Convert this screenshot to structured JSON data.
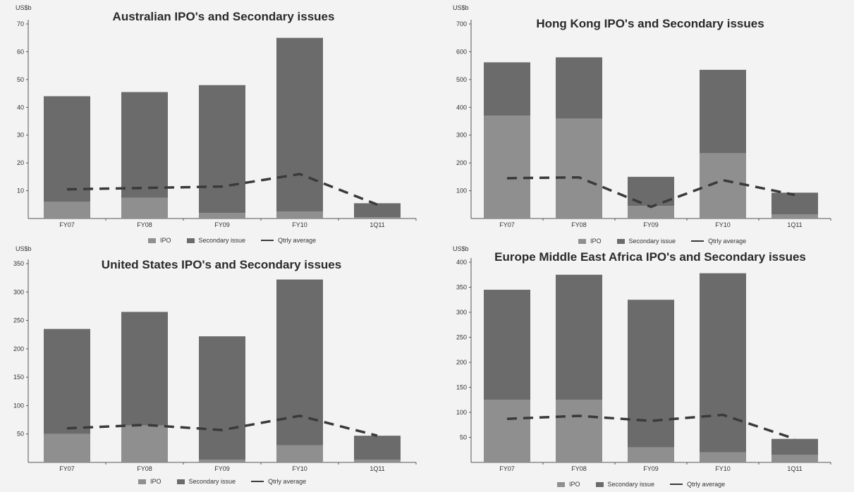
{
  "colors": {
    "ipo": "#8f8f8f",
    "secondary": "#6b6b6b",
    "avg_line": "#3a3a3a",
    "axis": "#555555"
  },
  "legend": {
    "ipo": "IPO",
    "secondary": "Secondary issue",
    "avg": "Qtrly average"
  },
  "chart_data": [
    {
      "type": "bar",
      "stacked": true,
      "title": "Australian IPO's and Secondary issues",
      "unit_label": "US$b",
      "categories": [
        "FY07",
        "FY08",
        "FY09",
        "FY10",
        "1Q11"
      ],
      "ylim": [
        0,
        70
      ],
      "yticks": [
        10,
        20,
        30,
        40,
        50,
        60,
        70
      ],
      "series": [
        {
          "name": "IPO",
          "values": [
            6,
            7.5,
            2,
            2.5,
            0.5
          ]
        },
        {
          "name": "Secondary issue",
          "values": [
            38,
            38,
            46,
            62.5,
            5
          ]
        }
      ],
      "line": {
        "name": "Qtrly average",
        "values": [
          10.5,
          11,
          11.5,
          16,
          5
        ]
      },
      "legend_position": "bottom"
    },
    {
      "type": "bar",
      "stacked": true,
      "title": "Hong Kong IPO's and Secondary issues",
      "unit_label": "US$b",
      "categories": [
        "FY07",
        "FY08",
        "FY09",
        "FY10",
        "1Q11"
      ],
      "ylim": [
        0,
        700
      ],
      "yticks": [
        100,
        200,
        300,
        400,
        500,
        600,
        700
      ],
      "series": [
        {
          "name": "IPO",
          "values": [
            370,
            360,
            45,
            235,
            15
          ]
        },
        {
          "name": "Secondary issue",
          "values": [
            192,
            220,
            105,
            300,
            78
          ]
        }
      ],
      "line": {
        "name": "Qtrly average",
        "values": [
          145,
          148,
          42,
          138,
          85
        ]
      },
      "legend_position": "bottom"
    },
    {
      "type": "bar",
      "stacked": true,
      "title": "United States IPO's and Secondary issues",
      "unit_label": "US$b",
      "categories": [
        "FY07",
        "FY08",
        "FY09",
        "FY10",
        "1Q11"
      ],
      "ylim": [
        0,
        350
      ],
      "yticks": [
        50,
        100,
        150,
        200,
        250,
        300,
        350
      ],
      "series": [
        {
          "name": "IPO",
          "values": [
            50,
            65,
            5,
            30,
            5
          ]
        },
        {
          "name": "Secondary issue",
          "values": [
            185,
            200,
            217,
            292,
            42
          ]
        }
      ],
      "line": {
        "name": "Qtrly average",
        "values": [
          60,
          66,
          57,
          82,
          47
        ]
      },
      "legend_position": "bottom"
    },
    {
      "type": "bar",
      "stacked": true,
      "title": "Europe Middle East Africa IPO's and Secondary issues",
      "unit_label": "US$b",
      "categories": [
        "FY07",
        "FY08",
        "FY09",
        "FY10",
        "1Q11"
      ],
      "ylim": [
        0,
        400
      ],
      "yticks": [
        50,
        100,
        150,
        200,
        250,
        300,
        350,
        400
      ],
      "series": [
        {
          "name": "IPO",
          "values": [
            125,
            125,
            30,
            20,
            15
          ]
        },
        {
          "name": "Secondary issue",
          "values": [
            220,
            250,
            295,
            358,
            32
          ]
        }
      ],
      "line": {
        "name": "Qtrly average",
        "values": [
          87,
          93,
          83,
          95,
          47
        ]
      },
      "legend_position": "bottom"
    }
  ]
}
